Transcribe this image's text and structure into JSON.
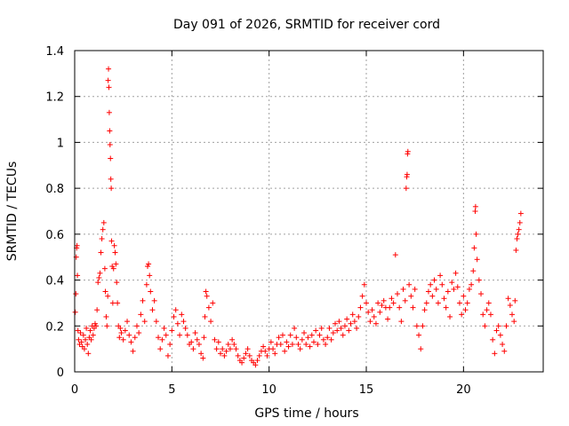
{
  "chart_data": {
    "type": "scatter",
    "title": "Day 091 of 2026, SRMTID for receiver cord",
    "xlabel": "GPS time / hours",
    "ylabel": "SRMTID / TECUs",
    "xlim": [
      0,
      24.1
    ],
    "ylim": [
      0,
      1.4
    ],
    "grid": true,
    "marker": "+",
    "color": "#ff0000",
    "xticks": [
      0,
      5,
      10,
      15,
      20
    ],
    "yticks": [
      0,
      0.2,
      0.4,
      0.6,
      0.8,
      1,
      1.2,
      1.4
    ],
    "series": [
      {
        "name": "SRMTID",
        "points": [
          [
            0.03,
            0.26
          ],
          [
            0.06,
            0.34
          ],
          [
            0.08,
            0.5
          ],
          [
            0.1,
            0.54
          ],
          [
            0.12,
            0.55
          ],
          [
            0.14,
            0.42
          ],
          [
            0.17,
            0.18
          ],
          [
            0.2,
            0.14
          ],
          [
            0.25,
            0.12
          ],
          [
            0.3,
            0.17
          ],
          [
            0.35,
            0.13
          ],
          [
            0.4,
            0.11
          ],
          [
            0.45,
            0.16
          ],
          [
            0.5,
            0.1
          ],
          [
            0.55,
            0.14
          ],
          [
            0.6,
            0.19
          ],
          [
            0.65,
            0.12
          ],
          [
            0.7,
            0.08
          ],
          [
            0.75,
            0.15
          ],
          [
            0.8,
            0.18
          ],
          [
            0.85,
            0.14
          ],
          [
            0.9,
            0.2
          ],
          [
            0.95,
            0.16
          ],
          [
            1.0,
            0.19
          ],
          [
            1.05,
            0.21
          ],
          [
            1.1,
            0.2
          ],
          [
            1.15,
            0.27
          ],
          [
            1.2,
            0.39
          ],
          [
            1.25,
            0.41
          ],
          [
            1.3,
            0.43
          ],
          [
            1.35,
            0.52
          ],
          [
            1.4,
            0.58
          ],
          [
            1.45,
            0.62
          ],
          [
            1.5,
            0.65
          ],
          [
            1.55,
            0.45
          ],
          [
            1.58,
            0.35
          ],
          [
            1.62,
            0.24
          ],
          [
            1.66,
            0.2
          ],
          [
            1.7,
            0.33
          ],
          [
            1.72,
            1.27
          ],
          [
            1.74,
            1.32
          ],
          [
            1.76,
            1.24
          ],
          [
            1.78,
            1.13
          ],
          [
            1.8,
            1.05
          ],
          [
            1.82,
            0.99
          ],
          [
            1.84,
            0.93
          ],
          [
            1.86,
            0.84
          ],
          [
            1.88,
            0.8
          ],
          [
            1.9,
            0.57
          ],
          [
            1.93,
            0.46
          ],
          [
            1.96,
            0.3
          ],
          [
            2.0,
            0.45
          ],
          [
            2.04,
            0.55
          ],
          [
            2.08,
            0.52
          ],
          [
            2.12,
            0.47
          ],
          [
            2.16,
            0.39
          ],
          [
            2.2,
            0.3
          ],
          [
            2.25,
            0.2
          ],
          [
            2.3,
            0.15
          ],
          [
            2.35,
            0.19
          ],
          [
            2.4,
            0.17
          ],
          [
            2.5,
            0.14
          ],
          [
            2.6,
            0.18
          ],
          [
            2.7,
            0.22
          ],
          [
            2.8,
            0.16
          ],
          [
            2.9,
            0.13
          ],
          [
            3.0,
            0.09
          ],
          [
            3.1,
            0.15
          ],
          [
            3.2,
            0.2
          ],
          [
            3.3,
            0.17
          ],
          [
            3.4,
            0.25
          ],
          [
            3.5,
            0.31
          ],
          [
            3.6,
            0.22
          ],
          [
            3.7,
            0.38
          ],
          [
            3.75,
            0.46
          ],
          [
            3.8,
            0.47
          ],
          [
            3.85,
            0.42
          ],
          [
            3.9,
            0.35
          ],
          [
            4.0,
            0.27
          ],
          [
            4.1,
            0.31
          ],
          [
            4.2,
            0.22
          ],
          [
            4.3,
            0.15
          ],
          [
            4.4,
            0.1
          ],
          [
            4.5,
            0.14
          ],
          [
            4.6,
            0.19
          ],
          [
            4.7,
            0.16
          ],
          [
            4.8,
            0.07
          ],
          [
            4.9,
            0.12
          ],
          [
            5.0,
            0.18
          ],
          [
            5.1,
            0.24
          ],
          [
            5.2,
            0.27
          ],
          [
            5.3,
            0.21
          ],
          [
            5.4,
            0.16
          ],
          [
            5.5,
            0.25
          ],
          [
            5.6,
            0.22
          ],
          [
            5.7,
            0.19
          ],
          [
            5.8,
            0.16
          ],
          [
            5.9,
            0.12
          ],
          [
            6.0,
            0.13
          ],
          [
            6.1,
            0.1
          ],
          [
            6.2,
            0.17
          ],
          [
            6.3,
            0.14
          ],
          [
            6.4,
            0.12
          ],
          [
            6.5,
            0.08
          ],
          [
            6.6,
            0.06
          ],
          [
            6.65,
            0.15
          ],
          [
            6.7,
            0.24
          ],
          [
            6.75,
            0.35
          ],
          [
            6.8,
            0.33
          ],
          [
            6.9,
            0.28
          ],
          [
            7.0,
            0.22
          ],
          [
            7.1,
            0.3
          ],
          [
            7.2,
            0.14
          ],
          [
            7.3,
            0.1
          ],
          [
            7.4,
            0.13
          ],
          [
            7.5,
            0.08
          ],
          [
            7.6,
            0.1
          ],
          [
            7.7,
            0.07
          ],
          [
            7.8,
            0.09
          ],
          [
            7.9,
            0.12
          ],
          [
            8.0,
            0.1
          ],
          [
            8.1,
            0.14
          ],
          [
            8.2,
            0.12
          ],
          [
            8.3,
            0.1
          ],
          [
            8.4,
            0.07
          ],
          [
            8.5,
            0.05
          ],
          [
            8.6,
            0.04
          ],
          [
            8.7,
            0.06
          ],
          [
            8.8,
            0.08
          ],
          [
            8.9,
            0.1
          ],
          [
            9.0,
            0.07
          ],
          [
            9.1,
            0.05
          ],
          [
            9.2,
            0.04
          ],
          [
            9.3,
            0.03
          ],
          [
            9.4,
            0.05
          ],
          [
            9.5,
            0.07
          ],
          [
            9.6,
            0.09
          ],
          [
            9.7,
            0.11
          ],
          [
            9.8,
            0.09
          ],
          [
            9.9,
            0.07
          ],
          [
            10.0,
            0.1
          ],
          [
            10.1,
            0.13
          ],
          [
            10.2,
            0.1
          ],
          [
            10.3,
            0.08
          ],
          [
            10.4,
            0.12
          ],
          [
            10.5,
            0.15
          ],
          [
            10.6,
            0.12
          ],
          [
            10.7,
            0.16
          ],
          [
            10.8,
            0.09
          ],
          [
            10.9,
            0.13
          ],
          [
            11.0,
            0.11
          ],
          [
            11.1,
            0.16
          ],
          [
            11.2,
            0.12
          ],
          [
            11.3,
            0.19
          ],
          [
            11.4,
            0.15
          ],
          [
            11.5,
            0.12
          ],
          [
            11.6,
            0.1
          ],
          [
            11.7,
            0.14
          ],
          [
            11.8,
            0.17
          ],
          [
            11.9,
            0.12
          ],
          [
            12.0,
            0.15
          ],
          [
            12.1,
            0.11
          ],
          [
            12.2,
            0.16
          ],
          [
            12.3,
            0.13
          ],
          [
            12.4,
            0.18
          ],
          [
            12.5,
            0.12
          ],
          [
            12.6,
            0.16
          ],
          [
            12.7,
            0.19
          ],
          [
            12.8,
            0.14
          ],
          [
            12.9,
            0.12
          ],
          [
            13.0,
            0.15
          ],
          [
            13.1,
            0.19
          ],
          [
            13.2,
            0.14
          ],
          [
            13.3,
            0.17
          ],
          [
            13.4,
            0.21
          ],
          [
            13.5,
            0.18
          ],
          [
            13.6,
            0.22
          ],
          [
            13.7,
            0.19
          ],
          [
            13.8,
            0.16
          ],
          [
            13.9,
            0.2
          ],
          [
            14.0,
            0.23
          ],
          [
            14.1,
            0.18
          ],
          [
            14.2,
            0.21
          ],
          [
            14.3,
            0.25
          ],
          [
            14.4,
            0.22
          ],
          [
            14.5,
            0.19
          ],
          [
            14.6,
            0.24
          ],
          [
            14.7,
            0.28
          ],
          [
            14.8,
            0.33
          ],
          [
            14.9,
            0.38
          ],
          [
            15.0,
            0.3
          ],
          [
            15.1,
            0.26
          ],
          [
            15.2,
            0.22
          ],
          [
            15.3,
            0.27
          ],
          [
            15.4,
            0.24
          ],
          [
            15.5,
            0.21
          ],
          [
            15.6,
            0.3
          ],
          [
            15.7,
            0.26
          ],
          [
            15.8,
            0.29
          ],
          [
            15.9,
            0.31
          ],
          [
            16.0,
            0.28
          ],
          [
            16.1,
            0.23
          ],
          [
            16.2,
            0.28
          ],
          [
            16.3,
            0.32
          ],
          [
            16.4,
            0.3
          ],
          [
            16.5,
            0.51
          ],
          [
            16.6,
            0.34
          ],
          [
            16.7,
            0.28
          ],
          [
            16.8,
            0.22
          ],
          [
            16.9,
            0.36
          ],
          [
            17.0,
            0.31
          ],
          [
            17.05,
            0.8
          ],
          [
            17.08,
            0.85
          ],
          [
            17.1,
            0.86
          ],
          [
            17.12,
            0.95
          ],
          [
            17.14,
            0.96
          ],
          [
            17.2,
            0.38
          ],
          [
            17.3,
            0.33
          ],
          [
            17.4,
            0.28
          ],
          [
            17.5,
            0.36
          ],
          [
            17.6,
            0.2
          ],
          [
            17.7,
            0.16
          ],
          [
            17.8,
            0.1
          ],
          [
            17.9,
            0.2
          ],
          [
            18.0,
            0.27
          ],
          [
            18.1,
            0.3
          ],
          [
            18.2,
            0.35
          ],
          [
            18.3,
            0.38
          ],
          [
            18.4,
            0.33
          ],
          [
            18.5,
            0.4
          ],
          [
            18.6,
            0.36
          ],
          [
            18.7,
            0.3
          ],
          [
            18.8,
            0.42
          ],
          [
            18.9,
            0.38
          ],
          [
            19.0,
            0.32
          ],
          [
            19.1,
            0.28
          ],
          [
            19.2,
            0.35
          ],
          [
            19.3,
            0.24
          ],
          [
            19.4,
            0.39
          ],
          [
            19.5,
            0.36
          ],
          [
            19.6,
            0.43
          ],
          [
            19.7,
            0.37
          ],
          [
            19.8,
            0.3
          ],
          [
            19.9,
            0.25
          ],
          [
            20.0,
            0.33
          ],
          [
            20.1,
            0.27
          ],
          [
            20.2,
            0.3
          ],
          [
            20.3,
            0.36
          ],
          [
            20.4,
            0.38
          ],
          [
            20.5,
            0.44
          ],
          [
            20.55,
            0.54
          ],
          [
            20.6,
            0.7
          ],
          [
            20.62,
            0.72
          ],
          [
            20.65,
            0.6
          ],
          [
            20.7,
            0.49
          ],
          [
            20.8,
            0.4
          ],
          [
            20.9,
            0.34
          ],
          [
            21.0,
            0.25
          ],
          [
            21.1,
            0.2
          ],
          [
            21.2,
            0.27
          ],
          [
            21.3,
            0.3
          ],
          [
            21.4,
            0.25
          ],
          [
            21.5,
            0.14
          ],
          [
            21.6,
            0.08
          ],
          [
            21.7,
            0.18
          ],
          [
            21.8,
            0.2
          ],
          [
            21.9,
            0.16
          ],
          [
            22.0,
            0.12
          ],
          [
            22.1,
            0.09
          ],
          [
            22.2,
            0.2
          ],
          [
            22.3,
            0.32
          ],
          [
            22.4,
            0.29
          ],
          [
            22.5,
            0.25
          ],
          [
            22.6,
            0.22
          ],
          [
            22.65,
            0.31
          ],
          [
            22.7,
            0.53
          ],
          [
            22.75,
            0.58
          ],
          [
            22.8,
            0.6
          ],
          [
            22.85,
            0.62
          ],
          [
            22.9,
            0.65
          ],
          [
            22.95,
            0.69
          ]
        ]
      }
    ]
  }
}
